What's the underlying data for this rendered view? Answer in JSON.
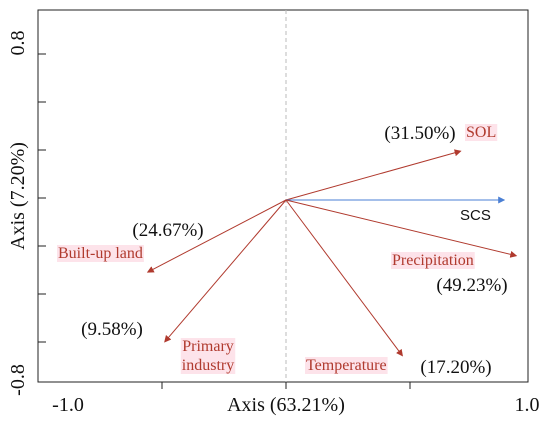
{
  "chart_data": {
    "type": "biplot",
    "xlabel": "Axis (63.21%)",
    "ylabel": "Axis (7.20%)",
    "xlim": [
      -1.0,
      1.0
    ],
    "ylim": [
      -0.8,
      0.8
    ],
    "x_tick_labels": [
      "-1.0",
      "1.0"
    ],
    "y_tick_labels": [
      "0.8",
      "-0.8"
    ],
    "center_lines": "dashed",
    "vectors": [
      {
        "name": "SOL",
        "x": 0.72,
        "y": 0.21,
        "contribution": "(31.50%)",
        "color": "#b03a2e",
        "label_highlight": "#fde3ea"
      },
      {
        "name": "SCS",
        "x": 0.9,
        "y": 0.0,
        "contribution": "",
        "color": "#4a7fd4",
        "label_highlight": ""
      },
      {
        "name": "Precipitation",
        "x": 0.95,
        "y": -0.24,
        "contribution": "(49.23%)",
        "color": "#b03a2e",
        "label_highlight": "#fde3ea"
      },
      {
        "name": "Temperature",
        "x": 0.48,
        "y": -0.67,
        "contribution": "(17.20%)",
        "color": "#b03a2e",
        "label_highlight": "#fde3ea"
      },
      {
        "name": "Primary industry",
        "x": -0.5,
        "y": -0.61,
        "contribution": "(9.58%)",
        "color": "#b03a2e",
        "label_highlight": "#fde3ea"
      },
      {
        "name": "Built-up land",
        "x": -0.57,
        "y": -0.31,
        "contribution": "(24.67%)",
        "color": "#b03a2e",
        "label_highlight": "#fde3ea"
      }
    ]
  }
}
